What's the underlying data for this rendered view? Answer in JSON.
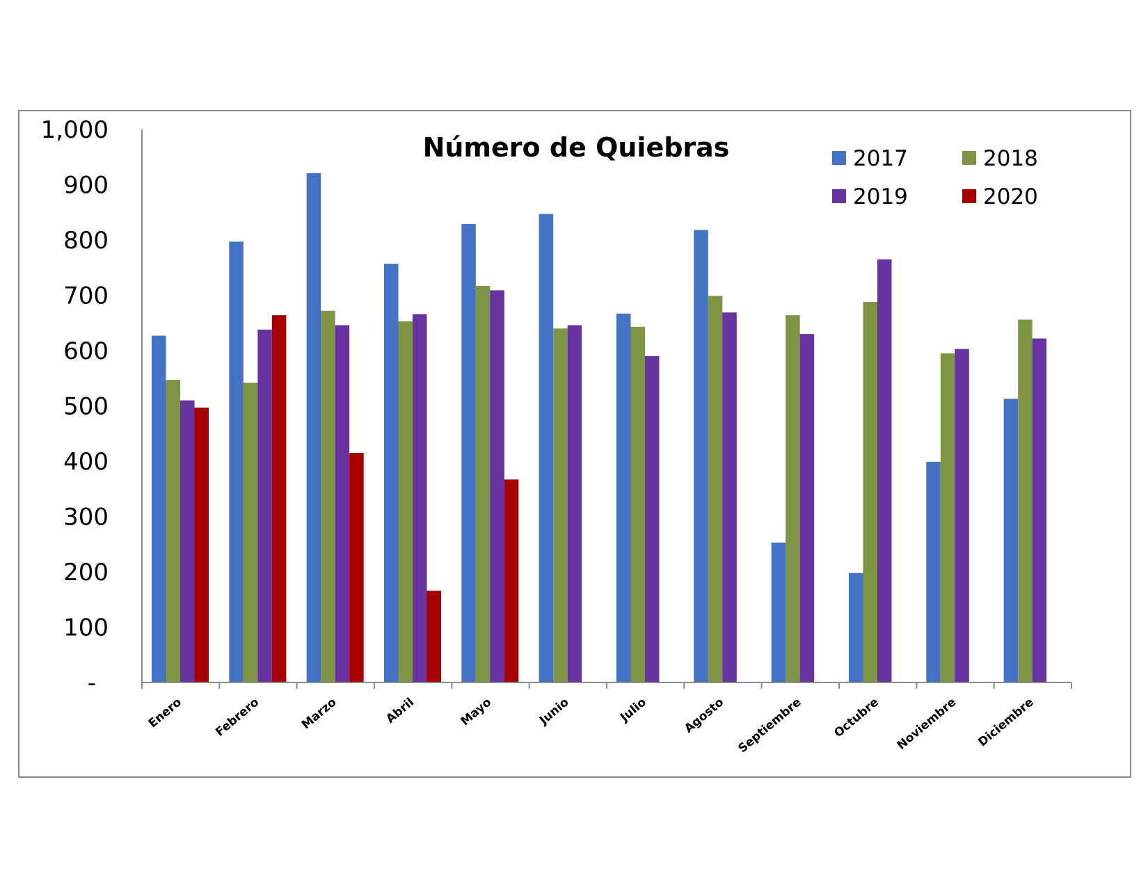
{
  "chart_data": {
    "type": "bar",
    "title": "Número de Quiebras",
    "xlabel": "",
    "ylabel": "",
    "ylim": [
      0,
      1000
    ],
    "yticks": [
      0,
      100,
      200,
      300,
      400,
      500,
      600,
      700,
      800,
      900,
      1000
    ],
    "ytick_labels": [
      "-",
      "100",
      "200",
      "300",
      "400",
      "500",
      "600",
      "700",
      "800",
      "900",
      "1,000"
    ],
    "categories": [
      "Enero",
      "Febrero",
      "Marzo",
      "Abril",
      "Mayo",
      "Junio",
      "Julio",
      "Agosto",
      "Septiembre",
      "Octubre",
      "Noviembre",
      "Diciembre"
    ],
    "grid": false,
    "legend_position": "top-right",
    "series": [
      {
        "name": "2017",
        "color": "#4472C4",
        "values": [
          627,
          797,
          921,
          757,
          829,
          847,
          667,
          818,
          253,
          198,
          399,
          513
        ]
      },
      {
        "name": "2018",
        "color": "#7F9544",
        "values": [
          547,
          542,
          672,
          653,
          717,
          640,
          643,
          699,
          664,
          688,
          595,
          656
        ]
      },
      {
        "name": "2019",
        "color": "#6633A0",
        "values": [
          510,
          638,
          646,
          666,
          709,
          646,
          590,
          669,
          630,
          765,
          603,
          622
        ]
      },
      {
        "name": "2020",
        "color": "#A80000",
        "values": [
          497,
          664,
          415,
          166,
          367,
          null,
          null,
          null,
          null,
          null,
          null,
          null
        ]
      }
    ]
  }
}
